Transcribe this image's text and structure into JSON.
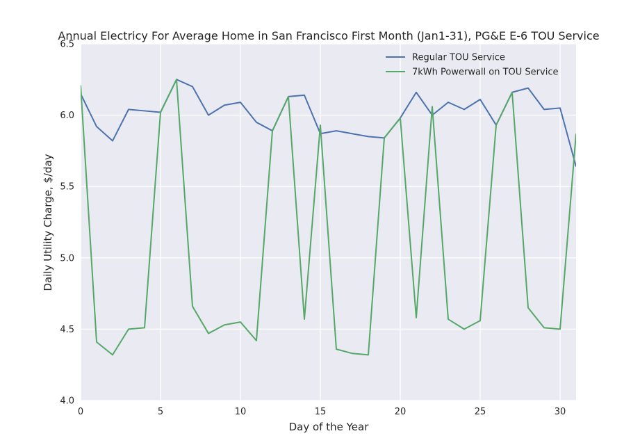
{
  "chart_data": {
    "type": "line",
    "title": "Annual Electricy For Average Home in San Francisco First Month (Jan1-31), PG&E E-6 TOU Service",
    "xlabel": "Day of the Year",
    "ylabel": "Daily Utility Charge, $/day",
    "xlim": [
      0,
      31
    ],
    "ylim": [
      4.0,
      6.5
    ],
    "xticks": [
      "0",
      "5",
      "10",
      "15",
      "20",
      "25",
      "30"
    ],
    "yticks": [
      "4.0",
      "4.5",
      "5.0",
      "5.5",
      "6.0",
      "6.5"
    ],
    "grid": true,
    "legend_position": "top-right",
    "x": [
      0,
      1,
      2,
      3,
      4,
      5,
      6,
      7,
      8,
      9,
      10,
      11,
      12,
      13,
      14,
      15,
      16,
      17,
      18,
      19,
      20,
      21,
      22,
      23,
      24,
      25,
      26,
      27,
      28,
      29,
      30,
      31
    ],
    "series": [
      {
        "name": "Regular TOU Service",
        "color": "#4c72b0",
        "values": [
          6.15,
          5.92,
          5.82,
          6.04,
          6.03,
          6.02,
          6.25,
          6.2,
          6.0,
          6.07,
          6.09,
          5.95,
          5.89,
          6.13,
          6.14,
          5.87,
          5.89,
          5.87,
          5.85,
          5.84,
          5.98,
          6.16,
          6.0,
          6.09,
          6.04,
          6.11,
          5.93,
          6.16,
          6.19,
          6.04,
          6.05,
          5.64
        ]
      },
      {
        "name": "7kWh Powerwall on TOU Service",
        "color": "#55a868",
        "values": [
          6.21,
          4.41,
          4.32,
          4.5,
          4.51,
          6.02,
          6.25,
          4.66,
          4.47,
          4.53,
          4.55,
          4.42,
          5.89,
          6.13,
          4.57,
          5.93,
          4.36,
          4.33,
          4.32,
          5.84,
          5.98,
          4.58,
          6.06,
          4.57,
          4.5,
          4.56,
          5.93,
          6.16,
          4.65,
          4.51,
          4.5,
          5.87
        ]
      }
    ]
  }
}
